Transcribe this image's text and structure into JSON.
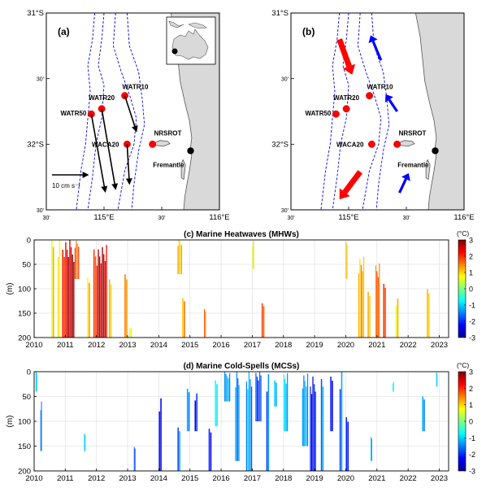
{
  "maps": {
    "panels": [
      {
        "label": "(a)"
      },
      {
        "label": "(b)"
      }
    ],
    "lat_ticks": [
      "31°S",
      "30'",
      "32°S",
      "30'"
    ],
    "lon_ticks": [
      "30'",
      "115°E",
      "30'",
      "116°E"
    ],
    "lon_range": [
      114.5,
      116.0
    ],
    "lat_range": [
      -32.5,
      -31.0
    ],
    "stations": [
      {
        "name": "WATR10",
        "lon": 115.18,
        "lat": -31.63
      },
      {
        "name": "WATR20",
        "lon": 114.98,
        "lat": -31.73
      },
      {
        "name": "WATR50",
        "lon": 114.89,
        "lat": -31.77
      },
      {
        "name": "WACA20",
        "lon": 115.2,
        "lat": -32.0
      },
      {
        "name": "NRSROT",
        "lon": 115.42,
        "lat": -32.0
      }
    ],
    "fremantle": {
      "name": "Fremantle",
      "lon": 115.75,
      "lat": -32.05
    },
    "scale_label": "10 cm s⁻¹",
    "current_arrows_a": [
      {
        "from": "WATR50",
        "to": [
          115.01,
          -32.36
        ]
      },
      {
        "from": "WATR20",
        "to": [
          115.1,
          -32.34
        ]
      },
      {
        "from": "WATR10",
        "to": [
          115.28,
          -31.9
        ]
      },
      {
        "from": "WACA20",
        "to": [
          115.22,
          -32.3
        ]
      }
    ],
    "arrows_b": [
      {
        "color": "#ff0000",
        "from": [
          114.92,
          -31.2
        ],
        "to": [
          115.03,
          -31.47
        ]
      },
      {
        "color": "#ff0000",
        "from": [
          115.1,
          -32.21
        ],
        "to": [
          114.92,
          -32.42
        ]
      },
      {
        "color": "#0000ff",
        "from": [
          115.28,
          -31.36
        ],
        "to": [
          115.19,
          -31.17
        ]
      },
      {
        "color": "#0000ff",
        "from": [
          115.42,
          -31.75
        ],
        "to": [
          115.32,
          -31.62
        ]
      },
      {
        "color": "#0000ff",
        "from": [
          115.44,
          -32.37
        ],
        "to": [
          115.52,
          -32.22
        ]
      }
    ]
  },
  "chart_data": [
    {
      "type": "heatmap",
      "title": "(c) Marine Heatwaves (MHWs)",
      "ylabel": "(m)",
      "ylim": [
        200,
        0
      ],
      "xlim": [
        2010,
        2023.3
      ],
      "y_ticks": [
        0,
        50,
        100,
        150,
        200
      ],
      "x_ticks": [
        "2010",
        "2011",
        "2012",
        "2013",
        "2014",
        "2015",
        "2016",
        "2017",
        "2018",
        "2019",
        "2020",
        "2021",
        "2022",
        "2023"
      ],
      "colorbar": {
        "label": "(°C)",
        "range": [
          -3,
          3
        ],
        "ticks": [
          "3",
          "2",
          "1",
          "0",
          "-1",
          "-2",
          "-3"
        ]
      },
      "events": [
        {
          "x0": 2010.55,
          "x1": 2010.65,
          "depth": [
            0,
            200
          ],
          "anomaly": 1.0
        },
        {
          "x0": 2010.75,
          "x1": 2010.85,
          "depth": [
            0,
            200
          ],
          "anomaly": 0.9
        },
        {
          "x0": 2010.9,
          "x1": 2011.0,
          "depth": [
            0,
            200
          ],
          "anomaly": 1.8
        },
        {
          "x0": 2011.0,
          "x1": 2011.3,
          "depth": [
            0,
            200
          ],
          "anomaly": 2.6
        },
        {
          "x0": 2011.3,
          "x1": 2011.45,
          "depth": [
            0,
            80
          ],
          "anomaly": 1.6
        },
        {
          "x0": 2011.7,
          "x1": 2011.8,
          "depth": [
            60,
            200
          ],
          "anomaly": 1.0
        },
        {
          "x0": 2011.9,
          "x1": 2012.0,
          "depth": [
            10,
            200
          ],
          "anomaly": 1.8
        },
        {
          "x0": 2012.0,
          "x1": 2012.35,
          "depth": [
            10,
            200
          ],
          "anomaly": 2.5
        },
        {
          "x0": 2012.4,
          "x1": 2012.5,
          "depth": [
            60,
            200
          ],
          "anomaly": 1.2
        },
        {
          "x0": 2012.9,
          "x1": 2013.0,
          "depth": [
            60,
            200
          ],
          "anomaly": 1.2
        },
        {
          "x0": 2013.05,
          "x1": 2013.15,
          "depth": [
            180,
            200
          ],
          "anomaly": 0.9
        },
        {
          "x0": 2014.6,
          "x1": 2014.75,
          "depth": [
            0,
            70
          ],
          "anomaly": 1.1
        },
        {
          "x0": 2014.75,
          "x1": 2014.85,
          "depth": [
            110,
            200
          ],
          "anomaly": 1.3
        },
        {
          "x0": 2015.45,
          "x1": 2015.52,
          "depth": [
            140,
            200
          ],
          "anomaly": 1.6
        },
        {
          "x0": 2017.0,
          "x1": 2017.06,
          "depth": [
            0,
            60
          ],
          "anomaly": 0.9
        },
        {
          "x0": 2017.3,
          "x1": 2017.4,
          "depth": [
            120,
            200
          ],
          "anomaly": 1.9
        },
        {
          "x0": 2020.0,
          "x1": 2020.06,
          "depth": [
            0,
            80
          ],
          "anomaly": 0.9
        },
        {
          "x0": 2020.4,
          "x1": 2020.6,
          "depth": [
            30,
            200
          ],
          "anomaly": 1.3
        },
        {
          "x0": 2020.7,
          "x1": 2020.8,
          "depth": [
            90,
            200
          ],
          "anomaly": 1.0
        },
        {
          "x0": 2020.95,
          "x1": 2021.1,
          "depth": [
            40,
            200
          ],
          "anomaly": 1.6
        },
        {
          "x0": 2021.2,
          "x1": 2021.3,
          "depth": [
            90,
            200
          ],
          "anomaly": 1.9
        },
        {
          "x0": 2021.6,
          "x1": 2021.7,
          "depth": [
            120,
            200
          ],
          "anomaly": 1.0
        },
        {
          "x0": 2022.6,
          "x1": 2022.7,
          "depth": [
            90,
            200
          ],
          "anomaly": 1.2
        }
      ]
    },
    {
      "type": "heatmap",
      "title": "(d) Marine Cold-Spells (MCSs)",
      "ylabel": "(m)",
      "ylim": [
        200,
        0
      ],
      "xlim": [
        2010,
        2023.3
      ],
      "y_ticks": [
        0,
        50,
        100,
        150,
        200
      ],
      "x_ticks": [
        "2010",
        "2011",
        "2012",
        "2013",
        "2014",
        "2015",
        "2016",
        "2017",
        "2018",
        "2019",
        "2020",
        "2021",
        "2022",
        "2023"
      ],
      "colorbar": {
        "label": "(°C)",
        "range": [
          -3,
          3
        ],
        "ticks": [
          "3",
          "2",
          "1",
          "0",
          "-1",
          "-2",
          "-3"
        ]
      },
      "events": [
        {
          "x0": 2010.05,
          "x1": 2010.1,
          "depth": [
            0,
            40
          ],
          "anomaly": -1.0
        },
        {
          "x0": 2010.2,
          "x1": 2010.25,
          "depth": [
            60,
            160
          ],
          "anomaly": -1.5
        },
        {
          "x0": 2011.6,
          "x1": 2011.65,
          "depth": [
            120,
            160
          ],
          "anomaly": -1.3
        },
        {
          "x0": 2013.2,
          "x1": 2013.25,
          "depth": [
            150,
            200
          ],
          "anomaly": -1.6
        },
        {
          "x0": 2014.0,
          "x1": 2014.1,
          "depth": [
            50,
            200
          ],
          "anomaly": -2.4
        },
        {
          "x0": 2014.6,
          "x1": 2014.7,
          "depth": [
            100,
            200
          ],
          "anomaly": -1.6
        },
        {
          "x0": 2014.9,
          "x1": 2015.0,
          "depth": [
            30,
            120
          ],
          "anomaly": -1.4
        },
        {
          "x0": 2015.15,
          "x1": 2015.25,
          "depth": [
            40,
            120
          ],
          "anomaly": -2.2
        },
        {
          "x0": 2015.6,
          "x1": 2015.7,
          "depth": [
            100,
            200
          ],
          "anomaly": -2.0
        },
        {
          "x0": 2015.8,
          "x1": 2015.9,
          "depth": [
            10,
            110
          ],
          "anomaly": -1.0
        },
        {
          "x0": 2016.1,
          "x1": 2016.3,
          "depth": [
            0,
            60
          ],
          "anomaly": -1.2
        },
        {
          "x0": 2016.45,
          "x1": 2016.6,
          "depth": [
            0,
            180
          ],
          "anomaly": -1.5
        },
        {
          "x0": 2016.8,
          "x1": 2017.0,
          "depth": [
            0,
            200
          ],
          "anomaly": -1.3
        },
        {
          "x0": 2017.1,
          "x1": 2017.3,
          "depth": [
            0,
            100
          ],
          "anomaly": -1.8
        },
        {
          "x0": 2017.45,
          "x1": 2017.55,
          "depth": [
            0,
            200
          ],
          "anomaly": -1.6
        },
        {
          "x0": 2017.7,
          "x1": 2017.8,
          "depth": [
            10,
            70
          ],
          "anomaly": -1.0
        },
        {
          "x0": 2018.0,
          "x1": 2018.15,
          "depth": [
            0,
            120
          ],
          "anomaly": -1.1
        },
        {
          "x0": 2018.6,
          "x1": 2018.8,
          "depth": [
            0,
            150
          ],
          "anomaly": -1.2
        },
        {
          "x0": 2018.85,
          "x1": 2019.05,
          "depth": [
            0,
            200
          ],
          "anomaly": -2.3
        },
        {
          "x0": 2019.2,
          "x1": 2019.3,
          "depth": [
            0,
            200
          ],
          "anomaly": -1.5
        },
        {
          "x0": 2019.5,
          "x1": 2019.6,
          "depth": [
            10,
            120
          ],
          "anomaly": -2.2
        },
        {
          "x0": 2019.8,
          "x1": 2019.9,
          "depth": [
            0,
            200
          ],
          "anomaly": -1.5
        },
        {
          "x0": 2020.0,
          "x1": 2020.1,
          "depth": [
            80,
            200
          ],
          "anomaly": -2.0
        },
        {
          "x0": 2020.8,
          "x1": 2020.85,
          "depth": [
            130,
            180
          ],
          "anomaly": -1.5
        },
        {
          "x0": 2021.5,
          "x1": 2021.55,
          "depth": [
            20,
            40
          ],
          "anomaly": -0.5
        },
        {
          "x0": 2022.45,
          "x1": 2022.55,
          "depth": [
            40,
            120
          ],
          "anomaly": -1.5
        },
        {
          "x0": 2022.9,
          "x1": 2022.95,
          "depth": [
            0,
            30
          ],
          "anomaly": -1.0
        }
      ]
    }
  ]
}
